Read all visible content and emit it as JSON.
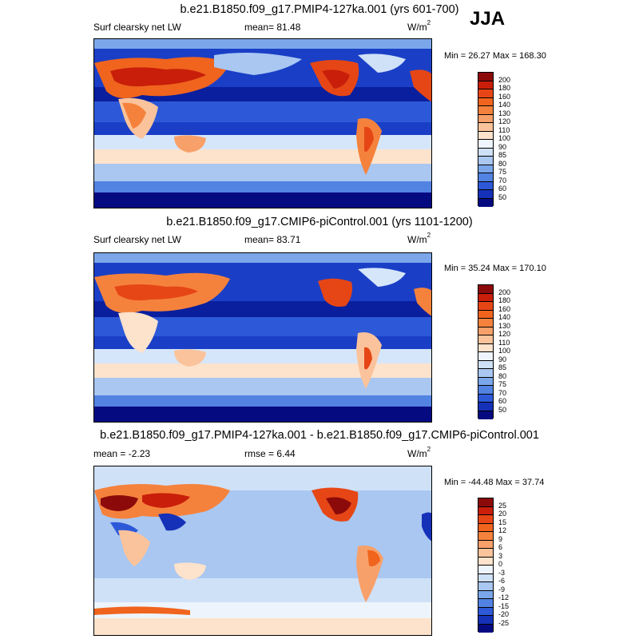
{
  "season": "JJA",
  "panels": [
    {
      "title": "b.e21.B1850.f09_g17.PMIP4-127ka.001 (yrs 601-700)",
      "left_label": "Surf clearsky net LW",
      "center_label": "mean=  81.48",
      "units": "W/m",
      "units_sup": "2",
      "minmax": "Min =  26.27 Max = 168.30",
      "colorbar_labels": [
        "200",
        "180",
        "160",
        "140",
        "130",
        "120",
        "110",
        "100",
        "90",
        "85",
        "80",
        "75",
        "70",
        "60",
        "50"
      ],
      "colorbar_colors": [
        "#8c0a0a",
        "#c81e0a",
        "#e64616",
        "#f0641e",
        "#f5823c",
        "#f8a06a",
        "#fbc39b",
        "#fde2cc",
        "#eef4fb",
        "#cfe1f7",
        "#a9c7f1",
        "#7ba7ea",
        "#5283e2",
        "#2d59d8",
        "#1531b8",
        "#060a80"
      ]
    },
    {
      "title": "b.e21.B1850.f09_g17.CMIP6-piControl.001 (yrs 1101-1200)",
      "left_label": "Surf clearsky net LW",
      "center_label": "mean=  83.71",
      "units": "W/m",
      "units_sup": "2",
      "minmax": "Min =  35.24 Max = 170.10",
      "colorbar_labels": [
        "200",
        "180",
        "160",
        "140",
        "130",
        "120",
        "110",
        "100",
        "90",
        "85",
        "80",
        "75",
        "70",
        "60",
        "50"
      ],
      "colorbar_colors": [
        "#8c0a0a",
        "#c81e0a",
        "#e64616",
        "#f0641e",
        "#f5823c",
        "#f8a06a",
        "#fbc39b",
        "#fde2cc",
        "#eef4fb",
        "#cfe1f7",
        "#a9c7f1",
        "#7ba7ea",
        "#5283e2",
        "#2d59d8",
        "#1531b8",
        "#060a80"
      ]
    },
    {
      "title": "b.e21.B1850.f09_g17.PMIP4-127ka.001 - b.e21.B1850.f09_g17.CMIP6-piControl.001",
      "left_label": "mean =  -2.23",
      "center_label": "rmse =  6.44",
      "units": "W/m",
      "units_sup": "2",
      "minmax": "Min = -44.48 Max =  37.74",
      "colorbar_labels": [
        "25",
        "20",
        "15",
        "12",
        "9",
        "6",
        "3",
        "0",
        "-3",
        "-6",
        "-9",
        "-12",
        "-15",
        "-20",
        "-25"
      ],
      "colorbar_colors": [
        "#8c0a0a",
        "#c81e0a",
        "#e64616",
        "#f0641e",
        "#f5823c",
        "#f8a06a",
        "#fbc39b",
        "#fde2cc",
        "#eef4fb",
        "#cfe1f7",
        "#a9c7f1",
        "#7ba7ea",
        "#5283e2",
        "#2d59d8",
        "#1531b8",
        "#060a80"
      ]
    }
  ]
}
